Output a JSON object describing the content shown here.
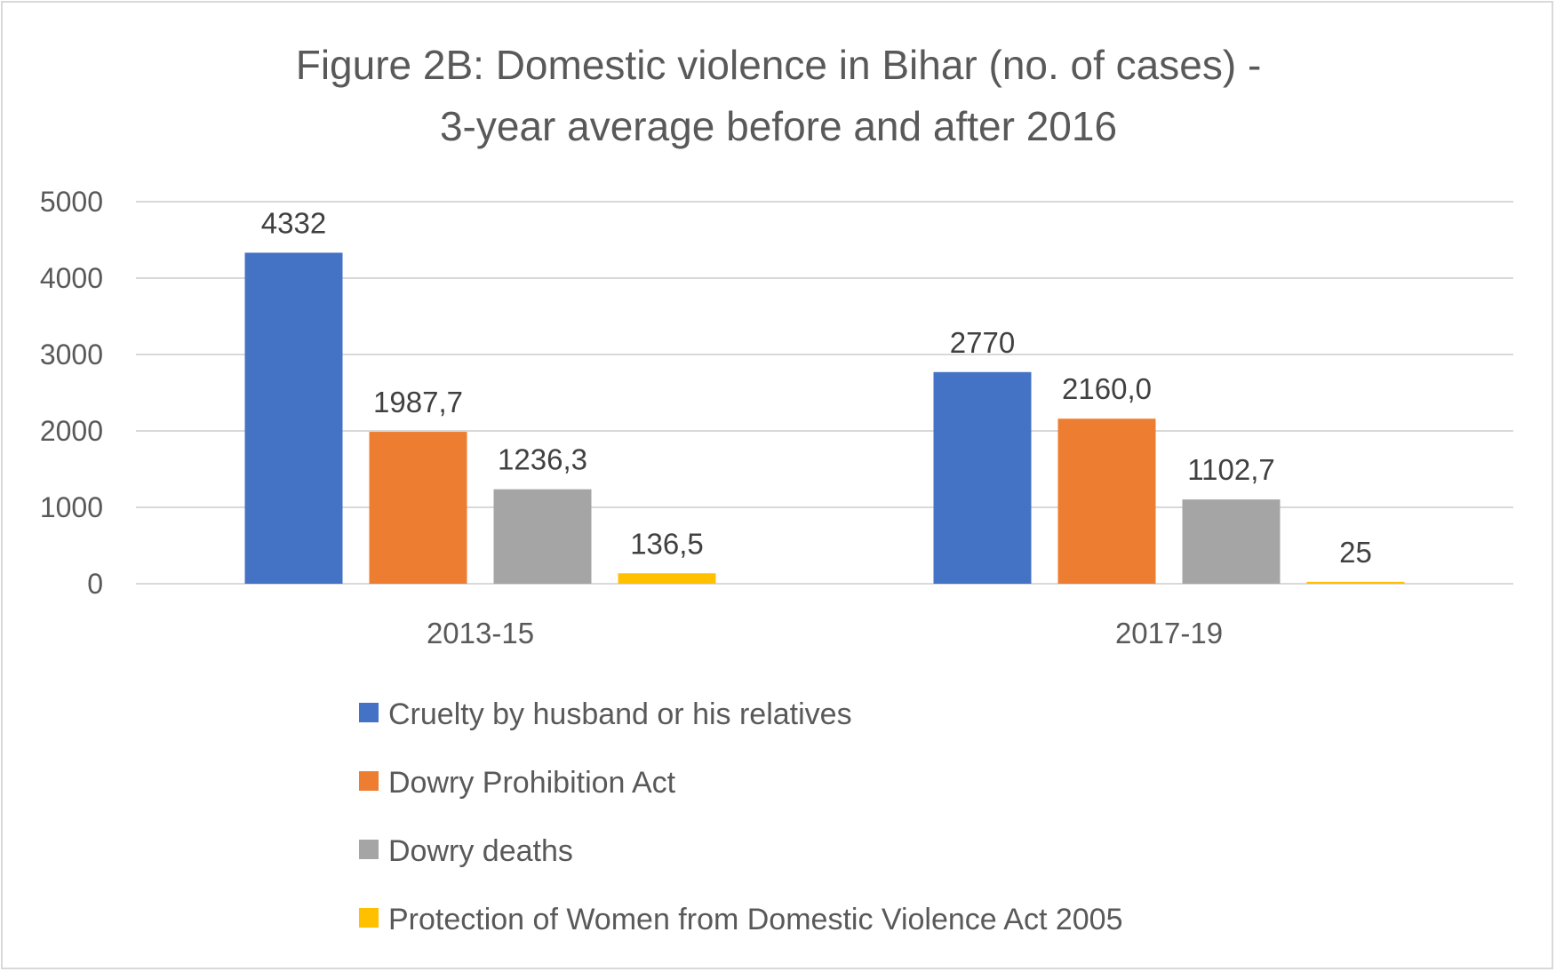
{
  "chart_data": {
    "type": "bar",
    "title_lines": [
      "Figure 2B: Domestic violence in Bihar (no. of cases) -",
      "3-year average before and after 2016"
    ],
    "categories": [
      "2013-15",
      "2017-19"
    ],
    "series": [
      {
        "name": "Cruelty by husband or his relatives",
        "color": "#4472c4",
        "values": [
          4332,
          2770
        ],
        "labels": [
          "4332",
          "2770"
        ]
      },
      {
        "name": "Dowry Prohibition Act",
        "color": "#ed7d31",
        "values": [
          1987.7,
          2160.0
        ],
        "labels": [
          "1987,7",
          "2160,0"
        ]
      },
      {
        "name": "Dowry deaths",
        "color": "#a5a5a5",
        "values": [
          1236.3,
          1102.7
        ],
        "labels": [
          "1236,3",
          "1102,7"
        ]
      },
      {
        "name": "Protection of Women from Domestic Violence Act 2005",
        "color": "#ffc000",
        "values": [
          136.5,
          25
        ],
        "labels": [
          "136,5",
          "25"
        ]
      }
    ],
    "ylim": [
      0,
      5000
    ],
    "yticks": [
      0,
      1000,
      2000,
      3000,
      4000,
      5000
    ],
    "xlabel": "",
    "ylabel": "",
    "grid": true,
    "legend_position": "bottom"
  }
}
